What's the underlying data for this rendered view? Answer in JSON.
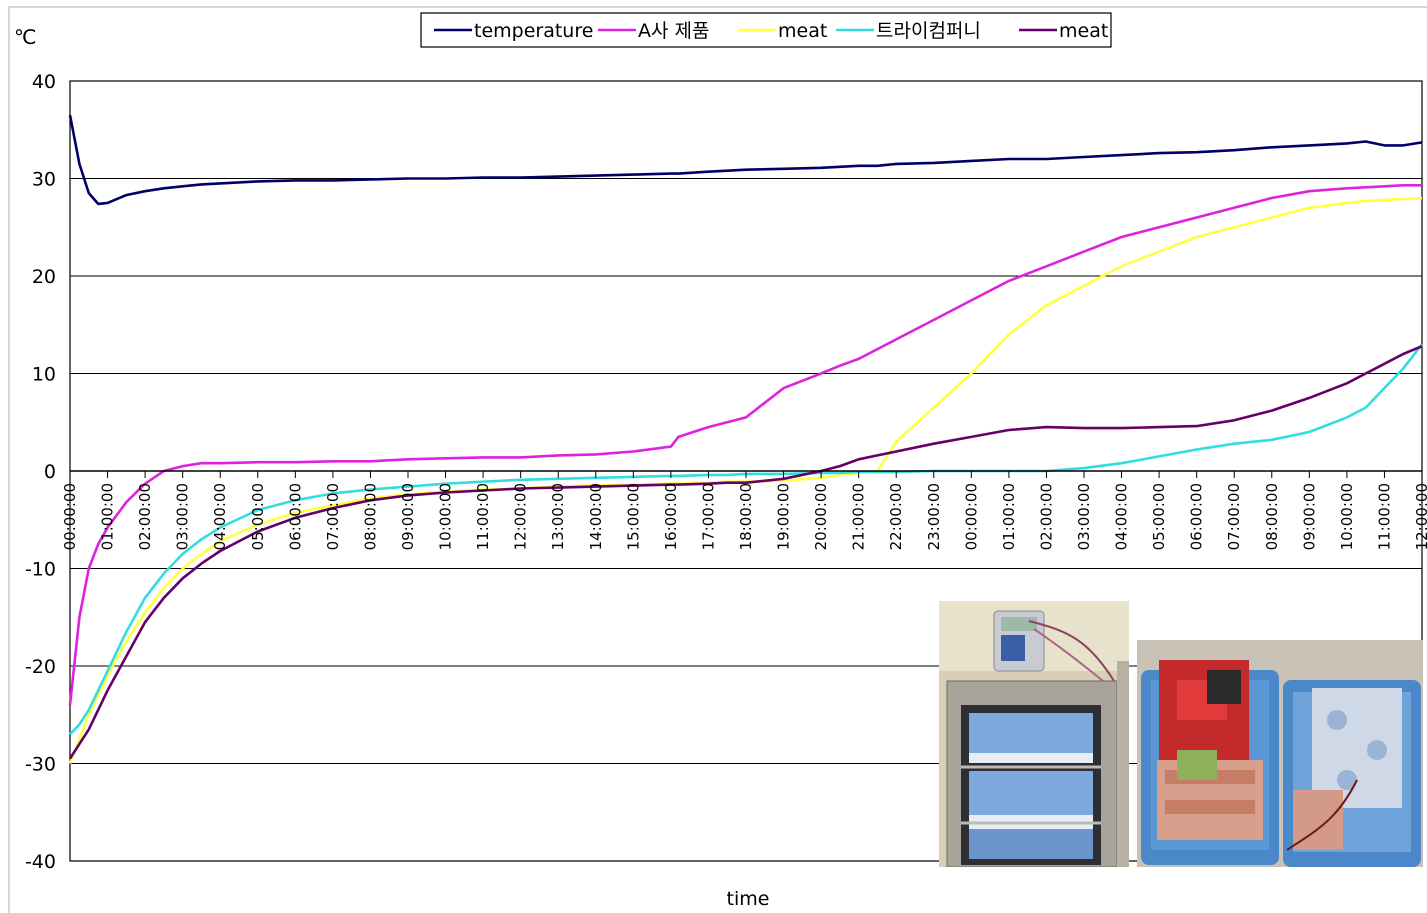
{
  "chart_data": {
    "type": "line",
    "title": "",
    "xlabel": "time",
    "ylabel": "℃",
    "ylim": [
      -40,
      40
    ],
    "yticks": [
      40,
      30,
      20,
      10,
      0,
      -10,
      -20,
      -30,
      -40
    ],
    "grid": true,
    "legend_position": "top-center",
    "x_unit": "hours",
    "x": [
      0,
      0.25,
      0.5,
      0.75,
      1,
      1.5,
      2,
      2.5,
      3,
      3.5,
      4,
      5,
      6,
      7,
      8,
      9,
      10,
      11,
      12,
      13,
      14,
      15,
      16,
      16.2,
      17,
      17.5,
      18,
      19,
      20,
      20.5,
      21,
      21.5,
      22,
      23,
      24,
      25,
      26,
      27,
      28,
      29,
      30,
      31,
      32,
      33,
      34,
      34.5,
      35,
      35.5,
      36
    ],
    "categories": [
      "00:00:00",
      "01:00:00",
      "02:00:00",
      "03:00:00",
      "04:00:00",
      "05:00:00",
      "06:00:00",
      "07:00:00",
      "08:00:00",
      "09:00:00",
      "10:00:00",
      "11:00:00",
      "12:00:00",
      "13:00:00",
      "14:00:00",
      "15:00:00",
      "16:00:00",
      "17:00:00",
      "18:00:00",
      "19:00:00",
      "20:00:00",
      "21:00:00",
      "22:00:00",
      "23:00:00",
      "00:00:00",
      "01:00:00",
      "02:00:00",
      "03:00:00",
      "04:00:00",
      "05:00:00",
      "06:00:00",
      "07:00:00",
      "08:00:00",
      "09:00:00",
      "10:00:00",
      "11:00:00",
      "12:00:00"
    ],
    "series": [
      {
        "name": "temperature",
        "color": "#000066",
        "values": [
          36.5,
          31.5,
          28.5,
          27.4,
          27.5,
          28.3,
          28.7,
          29.0,
          29.2,
          29.4,
          29.5,
          29.7,
          29.8,
          29.8,
          29.9,
          30.0,
          30.0,
          30.1,
          30.1,
          30.2,
          30.3,
          30.4,
          30.5,
          30.5,
          30.7,
          30.8,
          30.9,
          31.0,
          31.1,
          31.2,
          31.3,
          31.3,
          31.5,
          31.6,
          31.8,
          32.0,
          32.0,
          32.2,
          32.4,
          32.6,
          32.7,
          32.9,
          33.2,
          33.4,
          33.6,
          33.8,
          33.4,
          33.4,
          33.7
        ]
      },
      {
        "name": "A사 제품",
        "color": "#dd22dd",
        "values": [
          -24.0,
          -15.0,
          -10.0,
          -7.5,
          -5.8,
          -3.2,
          -1.3,
          0.0,
          0.5,
          0.8,
          0.8,
          0.9,
          0.9,
          1.0,
          1.0,
          1.2,
          1.3,
          1.4,
          1.4,
          1.6,
          1.7,
          2.0,
          2.5,
          3.5,
          4.5,
          5.0,
          5.5,
          8.5,
          10.0,
          10.8,
          11.5,
          12.5,
          13.5,
          15.5,
          17.5,
          19.5,
          21.0,
          22.5,
          24.0,
          25.0,
          26.0,
          27.0,
          28.0,
          28.7,
          29.0,
          29.1,
          29.2,
          29.3,
          29.3
        ]
      },
      {
        "name": "meat",
        "color": "#ffff44",
        "values": [
          -30.0,
          -27.5,
          -25.0,
          -23.0,
          -21.0,
          -17.5,
          -14.5,
          -12.0,
          -10.0,
          -8.5,
          -7.2,
          -5.5,
          -4.3,
          -3.5,
          -2.8,
          -2.4,
          -2.1,
          -1.9,
          -1.8,
          -1.6,
          -1.5,
          -1.4,
          -1.3,
          -1.3,
          -1.2,
          -1.1,
          -1.1,
          -1.0,
          -0.7,
          -0.4,
          -0.2,
          0.0,
          3.0,
          6.5,
          10.0,
          14.0,
          17.0,
          19.0,
          21.0,
          22.5,
          24.0,
          25.0,
          26.0,
          27.0,
          27.5,
          27.7,
          27.8,
          27.9,
          28.0
        ]
      },
      {
        "name": "트라이컴퍼니",
        "color": "#33dddd",
        "values": [
          -27.0,
          -26.0,
          -24.5,
          -22.5,
          -20.5,
          -16.5,
          -13.0,
          -10.5,
          -8.5,
          -7.0,
          -5.8,
          -4.0,
          -3.0,
          -2.3,
          -1.9,
          -1.6,
          -1.3,
          -1.1,
          -0.9,
          -0.8,
          -0.7,
          -0.6,
          -0.5,
          -0.5,
          -0.4,
          -0.4,
          -0.3,
          -0.3,
          -0.2,
          -0.2,
          -0.1,
          -0.1,
          -0.1,
          0.0,
          0.0,
          0.0,
          0.0,
          0.3,
          0.8,
          1.5,
          2.2,
          2.8,
          3.2,
          4.0,
          5.5,
          6.5,
          8.5,
          10.5,
          13.0
        ]
      },
      {
        "name": "meat",
        "color": "#660066",
        "values": [
          -29.5,
          -28.0,
          -26.5,
          -24.5,
          -22.5,
          -19.0,
          -15.5,
          -13.0,
          -11.0,
          -9.5,
          -8.2,
          -6.2,
          -4.8,
          -3.8,
          -3.0,
          -2.5,
          -2.2,
          -2.0,
          -1.8,
          -1.7,
          -1.6,
          -1.5,
          -1.4,
          -1.4,
          -1.3,
          -1.2,
          -1.2,
          -0.8,
          0.0,
          0.5,
          1.2,
          1.6,
          2.0,
          2.8,
          3.5,
          4.2,
          4.5,
          4.4,
          4.4,
          4.5,
          4.6,
          5.2,
          6.2,
          7.5,
          9.0,
          10.0,
          11.0,
          12.0,
          12.8
        ]
      }
    ],
    "legend": [
      "temperature",
      "A사 제품",
      "meat",
      "트라이컴퍼니",
      "meat"
    ]
  },
  "photos": [
    {
      "subject": "data logger on top of a stainless incubator containing insulated boxes"
    },
    {
      "subject": "open insulated boxes holding packaged meat and ice packs"
    }
  ]
}
